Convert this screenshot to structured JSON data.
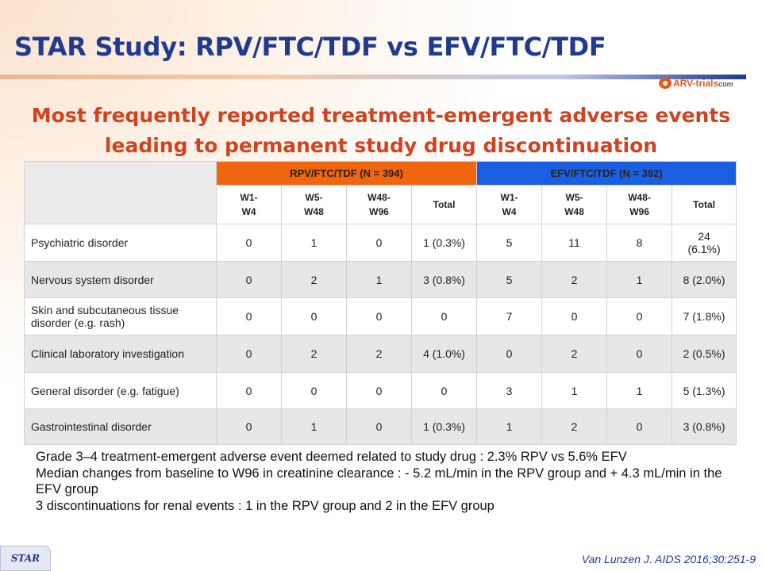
{
  "slide": {
    "title": "STAR Study: RPV/FTC/TDF vs EFV/FTC/TDF",
    "logo": {
      "brand": "ARV-trials",
      "suffix": "com"
    },
    "subtitle": [
      "Most frequently reported treatment-emergent adverse events",
      "leading to permanent study drug discontinuation"
    ],
    "footer_tag": "STAR",
    "citation": "Van Lunzen J. AIDS 2016;30:251-9"
  },
  "colors": {
    "title": "#1f3a8f",
    "subtitle": "#d0431e",
    "rpv_header": "#f0650f",
    "efv_header": "#1b5fe0"
  },
  "table": {
    "groups": [
      {
        "label": "RPV/FTC/TDF (N = 394)",
        "subheaders": [
          "W1-\nW4",
          "W5-\nW48",
          "W48-\nW96",
          "Total"
        ]
      },
      {
        "label": "EFV/FTC/TDF (N = 392)",
        "subheaders": [
          "W1-\nW4",
          "W5-\nW48",
          "W48-\nW96",
          "Total"
        ]
      }
    ],
    "rows": [
      {
        "label": "Psychiatric disorder",
        "rpv": [
          "0",
          "1",
          "0",
          "1 (0.3%)"
        ],
        "efv": [
          "5",
          "11",
          "8",
          "24\n(6.1%)"
        ]
      },
      {
        "label": "Nervous system disorder",
        "rpv": [
          "0",
          "2",
          "1",
          "3 (0.8%)"
        ],
        "efv": [
          "5",
          "2",
          "1",
          "8 (2.0%)"
        ]
      },
      {
        "label": "Skin and subcutaneous tissue\ndisorder (e.g. rash)",
        "rpv": [
          "0",
          "0",
          "0",
          "0"
        ],
        "efv": [
          "7",
          "0",
          "0",
          "7 (1.8%)"
        ]
      },
      {
        "label": "Clinical laboratory investigation",
        "rpv": [
          "0",
          "2",
          "2",
          "4 (1.0%)"
        ],
        "efv": [
          "0",
          "2",
          "0",
          "2 (0.5%)"
        ]
      },
      {
        "label": "General disorder (e.g. fatigue)",
        "rpv": [
          "0",
          "0",
          "0",
          "0"
        ],
        "efv": [
          "3",
          "1",
          "1",
          "5 (1.3%)"
        ]
      },
      {
        "label": "Gastrointestinal disorder",
        "rpv": [
          "0",
          "1",
          "0",
          "1 (0.3%)"
        ],
        "efv": [
          "1",
          "2",
          "0",
          "3 (0.8%)"
        ]
      }
    ]
  },
  "notes": [
    "Grade 3–4 treatment-emergent adverse event deemed related to study drug : 2.3% RPV vs 5.6% EFV",
    "Median changes from baseline to W96 in creatinine clearance : - 5.2 mL/min in the RPV group and + 4.3 mL/min in the EFV group",
    "3 discontinuations for renal events : 1 in the RPV group and 2 in the EFV group"
  ]
}
